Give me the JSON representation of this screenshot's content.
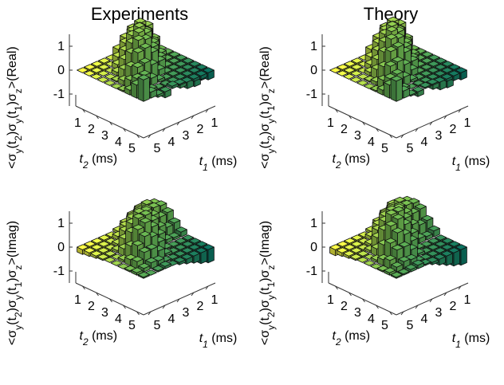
{
  "titles": {
    "left": "Experiments",
    "right": "Theory"
  },
  "chart_data": [
    {
      "type": "bar3d",
      "panel": "experiments-real",
      "zlabel_main": "<σ",
      "zlabel_sub": "y",
      "zlabel_seq": [
        "<σ",
        "y",
        "(t",
        "2",
        ")σ",
        "y",
        "(t",
        "1",
        ")σ",
        "z",
        ">(Real)"
      ],
      "xlabel": "t",
      "xlabel_sub": "1",
      "xlabel_unit": " (ms)",
      "ylabel": "t",
      "ylabel_sub": "2",
      "ylabel_unit": " (ms)",
      "x_ticks": [
        "1",
        "2",
        "3",
        "4",
        "5"
      ],
      "y_ticks": [
        "1",
        "2",
        "3",
        "4",
        "5"
      ],
      "z_ticks": [
        "1",
        "0",
        "-1"
      ],
      "zlim": [
        -1.5,
        1.5
      ],
      "values": [
        [
          0.9,
          0.25,
          -0.1,
          -0.25,
          0.1,
          0.05,
          0.0,
          -0.1,
          -0.15,
          -0.3
        ],
        [
          0.55,
          0.45,
          0.1,
          -0.05,
          -0.05,
          0.0,
          0.0,
          -0.15,
          -0.3,
          -0.45
        ],
        [
          0.2,
          0.55,
          0.55,
          0.3,
          0.1,
          -0.2,
          -0.45,
          -0.65,
          -0.8,
          -0.85
        ],
        [
          0.05,
          0.35,
          0.75,
          0.8,
          0.6,
          0.25,
          -0.1,
          -0.5,
          -0.8,
          -0.9
        ],
        [
          0.0,
          0.2,
          0.65,
          1.1,
          1.15,
          0.85,
          0.35,
          -0.1,
          -0.55,
          -0.8
        ],
        [
          0.0,
          0.05,
          0.4,
          0.95,
          1.35,
          1.25,
          0.8,
          0.25,
          -0.2,
          -0.55
        ],
        [
          0.0,
          0.0,
          0.15,
          0.55,
          1.1,
          1.4,
          1.25,
          0.7,
          0.15,
          -0.25
        ],
        [
          0.0,
          0.0,
          0.0,
          0.2,
          0.65,
          1.15,
          1.35,
          1.05,
          0.5,
          0.0
        ],
        [
          0.0,
          -0.1,
          -0.1,
          0.0,
          0.25,
          0.7,
          1.05,
          1.1,
          0.8,
          0.35
        ],
        [
          0.0,
          -0.15,
          -0.2,
          -0.15,
          0.0,
          0.3,
          0.65,
          0.9,
          1.0,
          0.75
        ]
      ]
    },
    {
      "type": "bar3d",
      "panel": "theory-real",
      "zlabel_seq": [
        "<σ",
        "y",
        "(t",
        "2",
        ")σ",
        "y",
        "(t",
        "1",
        ")σ",
        "z",
        ">(Real)"
      ],
      "xlabel": "t",
      "xlabel_sub": "1",
      "xlabel_unit": " (ms)",
      "ylabel": "t",
      "ylabel_sub": "2",
      "ylabel_unit": " (ms)",
      "x_ticks": [
        "1",
        "2",
        "3",
        "4",
        "5"
      ],
      "y_ticks": [
        "1",
        "2",
        "3",
        "4",
        "5"
      ],
      "z_ticks": [
        "1",
        "0",
        "-1"
      ],
      "zlim": [
        -1.5,
        1.5
      ],
      "values": [
        [
          0.85,
          0.3,
          -0.05,
          -0.2,
          0.05,
          0.05,
          0.0,
          -0.1,
          -0.2,
          -0.3
        ],
        [
          0.55,
          0.5,
          0.15,
          0.0,
          -0.05,
          0.0,
          -0.05,
          -0.2,
          -0.35,
          -0.45
        ],
        [
          0.2,
          0.55,
          0.6,
          0.35,
          0.1,
          -0.2,
          -0.45,
          -0.7,
          -0.85,
          -0.9
        ],
        [
          0.05,
          0.35,
          0.8,
          0.85,
          0.6,
          0.25,
          -0.15,
          -0.55,
          -0.85,
          -0.95
        ],
        [
          0.0,
          0.15,
          0.65,
          1.15,
          1.2,
          0.85,
          0.35,
          -0.15,
          -0.6,
          -0.85
        ],
        [
          0.0,
          0.05,
          0.4,
          1.0,
          1.4,
          1.3,
          0.8,
          0.2,
          -0.25,
          -0.6
        ],
        [
          0.0,
          0.0,
          0.15,
          0.55,
          1.15,
          1.45,
          1.3,
          0.7,
          0.1,
          -0.3
        ],
        [
          0.0,
          0.0,
          0.0,
          0.2,
          0.65,
          1.2,
          1.4,
          1.1,
          0.5,
          -0.05
        ],
        [
          0.0,
          -0.1,
          -0.1,
          0.0,
          0.25,
          0.7,
          1.1,
          1.15,
          0.85,
          0.35
        ],
        [
          0.0,
          -0.15,
          -0.2,
          -0.15,
          0.0,
          0.3,
          0.65,
          0.95,
          1.05,
          0.8
        ]
      ]
    },
    {
      "type": "bar3d",
      "panel": "experiments-imag",
      "zlabel_seq": [
        "<σ",
        "y",
        "(t",
        "2",
        ")σ",
        "y",
        "(t",
        "1",
        ")σ",
        "z",
        ">(Imag)"
      ],
      "xlabel": "t",
      "xlabel_sub": "1",
      "xlabel_unit": " (ms)",
      "ylabel": "t",
      "ylabel_sub": "2",
      "ylabel_unit": " (ms)",
      "x_ticks": [
        "1",
        "2",
        "3",
        "4",
        "5"
      ],
      "y_ticks": [
        "1",
        "2",
        "3",
        "4",
        "5"
      ],
      "z_ticks": [
        "1",
        "0",
        "-1"
      ],
      "zlim": [
        -1.5,
        1.5
      ],
      "values": [
        [
          0.05,
          0.0,
          0.05,
          0.1,
          0.0,
          -0.1,
          -0.2,
          -0.3,
          -0.45,
          -0.55
        ],
        [
          0.1,
          0.15,
          0.25,
          0.2,
          0.05,
          -0.1,
          -0.25,
          -0.4,
          -0.5,
          -0.6
        ],
        [
          0.05,
          0.3,
          0.55,
          0.55,
          0.35,
          0.1,
          -0.15,
          -0.3,
          -0.35,
          -0.4
        ],
        [
          0.0,
          0.25,
          0.7,
          0.95,
          0.8,
          0.45,
          0.05,
          -0.15,
          -0.15,
          -0.1
        ],
        [
          0.0,
          0.1,
          0.55,
          1.1,
          1.25,
          0.95,
          0.5,
          0.15,
          0.1,
          0.2
        ],
        [
          0.0,
          0.0,
          0.3,
          0.85,
          1.3,
          1.3,
          0.95,
          0.55,
          0.4,
          0.45
        ],
        [
          -0.05,
          -0.05,
          0.1,
          0.45,
          0.95,
          1.25,
          1.2,
          0.9,
          0.7,
          0.75
        ],
        [
          -0.1,
          -0.15,
          -0.1,
          0.1,
          0.5,
          0.9,
          1.05,
          1.0,
          0.95,
          0.9
        ],
        [
          -0.15,
          -0.25,
          -0.3,
          -0.15,
          0.15,
          0.45,
          0.7,
          0.85,
          0.95,
          0.85
        ],
        [
          -0.2,
          -0.3,
          -0.4,
          -0.35,
          -0.1,
          0.1,
          0.3,
          0.5,
          0.65,
          0.6
        ]
      ]
    },
    {
      "type": "bar3d",
      "panel": "theory-imag",
      "zlabel_seq": [
        "<σ",
        "y",
        "(t",
        "2",
        ")σ",
        "y",
        "(t",
        "1",
        ")σ",
        "z",
        ">(Imag)"
      ],
      "xlabel": "t",
      "xlabel_sub": "1",
      "xlabel_unit": " (ms)",
      "ylabel": "t",
      "ylabel_sub": "2",
      "ylabel_unit": " (ms)",
      "x_ticks": [
        "1",
        "2",
        "3",
        "4",
        "5"
      ],
      "y_ticks": [
        "1",
        "2",
        "3",
        "4",
        "5"
      ],
      "z_ticks": [
        "1",
        "0",
        "-1"
      ],
      "zlim": [
        -1.5,
        1.5
      ],
      "values": [
        [
          0.05,
          0.05,
          0.1,
          0.15,
          0.05,
          -0.1,
          -0.25,
          -0.4,
          -0.55,
          -0.65
        ],
        [
          0.1,
          0.2,
          0.3,
          0.25,
          0.05,
          -0.15,
          -0.3,
          -0.45,
          -0.6,
          -0.7
        ],
        [
          0.05,
          0.35,
          0.65,
          0.65,
          0.4,
          0.1,
          -0.15,
          -0.35,
          -0.4,
          -0.45
        ],
        [
          0.0,
          0.25,
          0.8,
          1.1,
          0.9,
          0.5,
          0.05,
          -0.15,
          -0.15,
          -0.1
        ],
        [
          0.0,
          0.1,
          0.6,
          1.25,
          1.4,
          1.05,
          0.55,
          0.2,
          0.15,
          0.25
        ],
        [
          0.0,
          0.0,
          0.3,
          0.95,
          1.45,
          1.45,
          1.05,
          0.65,
          0.5,
          0.55
        ],
        [
          -0.05,
          -0.05,
          0.1,
          0.5,
          1.05,
          1.35,
          1.3,
          1.0,
          0.85,
          0.9
        ],
        [
          -0.1,
          -0.15,
          -0.1,
          0.1,
          0.55,
          1.0,
          1.15,
          1.1,
          1.05,
          1.0
        ],
        [
          -0.15,
          -0.3,
          -0.35,
          -0.15,
          0.15,
          0.5,
          0.8,
          0.95,
          1.05,
          0.95
        ],
        [
          -0.25,
          -0.35,
          -0.45,
          -0.4,
          -0.1,
          0.1,
          0.35,
          0.6,
          0.8,
          0.75
        ]
      ]
    }
  ],
  "colors": {
    "low": "#0a6b5a",
    "mid": "#6ab04c",
    "high": "#f5f542",
    "axis": "#333333"
  }
}
